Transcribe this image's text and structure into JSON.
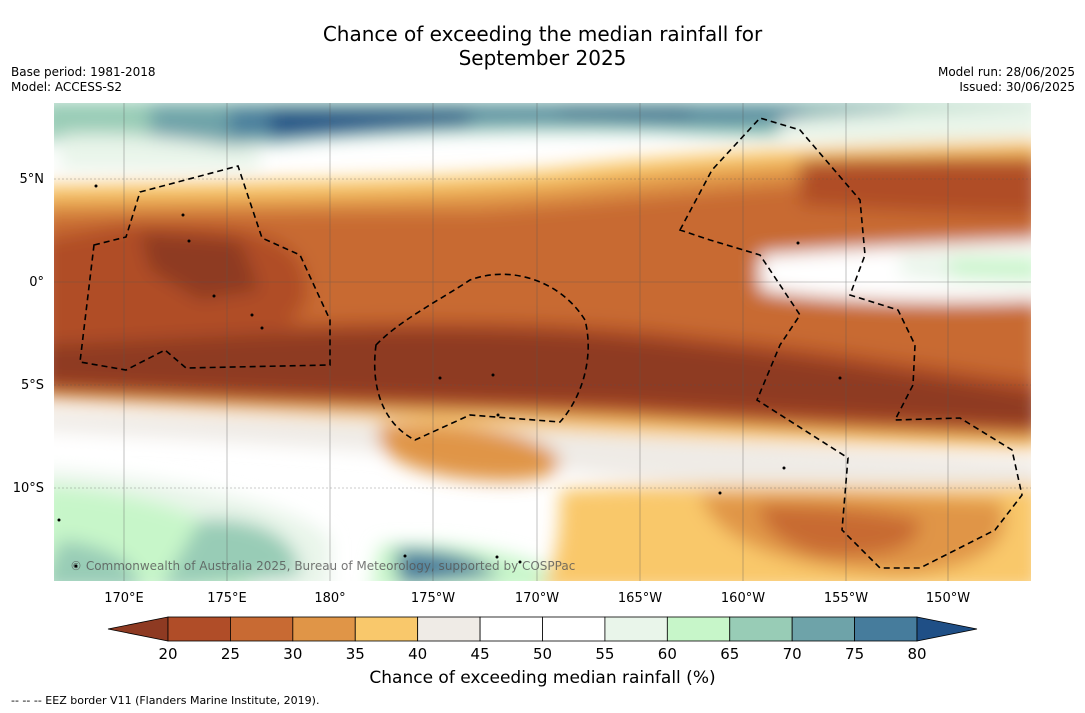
{
  "title": {
    "line1": "Chance of exceeding the median rainfall for",
    "line2": "September 2025"
  },
  "meta_left": {
    "base_period": "Base period: 1981-2018",
    "model": "Model: ACCESS-S2"
  },
  "meta_right": {
    "model_run": "Model run: 28/06/2025",
    "issued": "Issued: 30/06/2025"
  },
  "map": {
    "lon_ticks": [
      "170°E",
      "175°E",
      "180°",
      "175°W",
      "170°W",
      "165°W",
      "160°W",
      "155°W",
      "150°W"
    ],
    "lat_ticks": [
      "5°N",
      "0°",
      "5°S",
      "10°S"
    ],
    "watermark": "© Commonwealth of Australia 2025, Bureau of Meteorology, supported by COSPPac"
  },
  "colorbar": {
    "ticks": [
      "20",
      "25",
      "30",
      "35",
      "40",
      "45",
      "50",
      "55",
      "60",
      "65",
      "70",
      "75",
      "80"
    ],
    "colors": [
      "#8e3a22",
      "#b04d28",
      "#c86a33",
      "#e09547",
      "#f9c86b",
      "#efebe6",
      "#ffffff",
      "#ffffff",
      "#e9f5ea",
      "#c7f6c9",
      "#98ccb6",
      "#6ea3a9",
      "#467c9c",
      "#1f4f86"
    ],
    "title": "Chance of exceeding median rainfall (%)"
  },
  "legend_note": "-- -- -- EEZ border V11 (Flanders Marine Institute, 2019)."
}
